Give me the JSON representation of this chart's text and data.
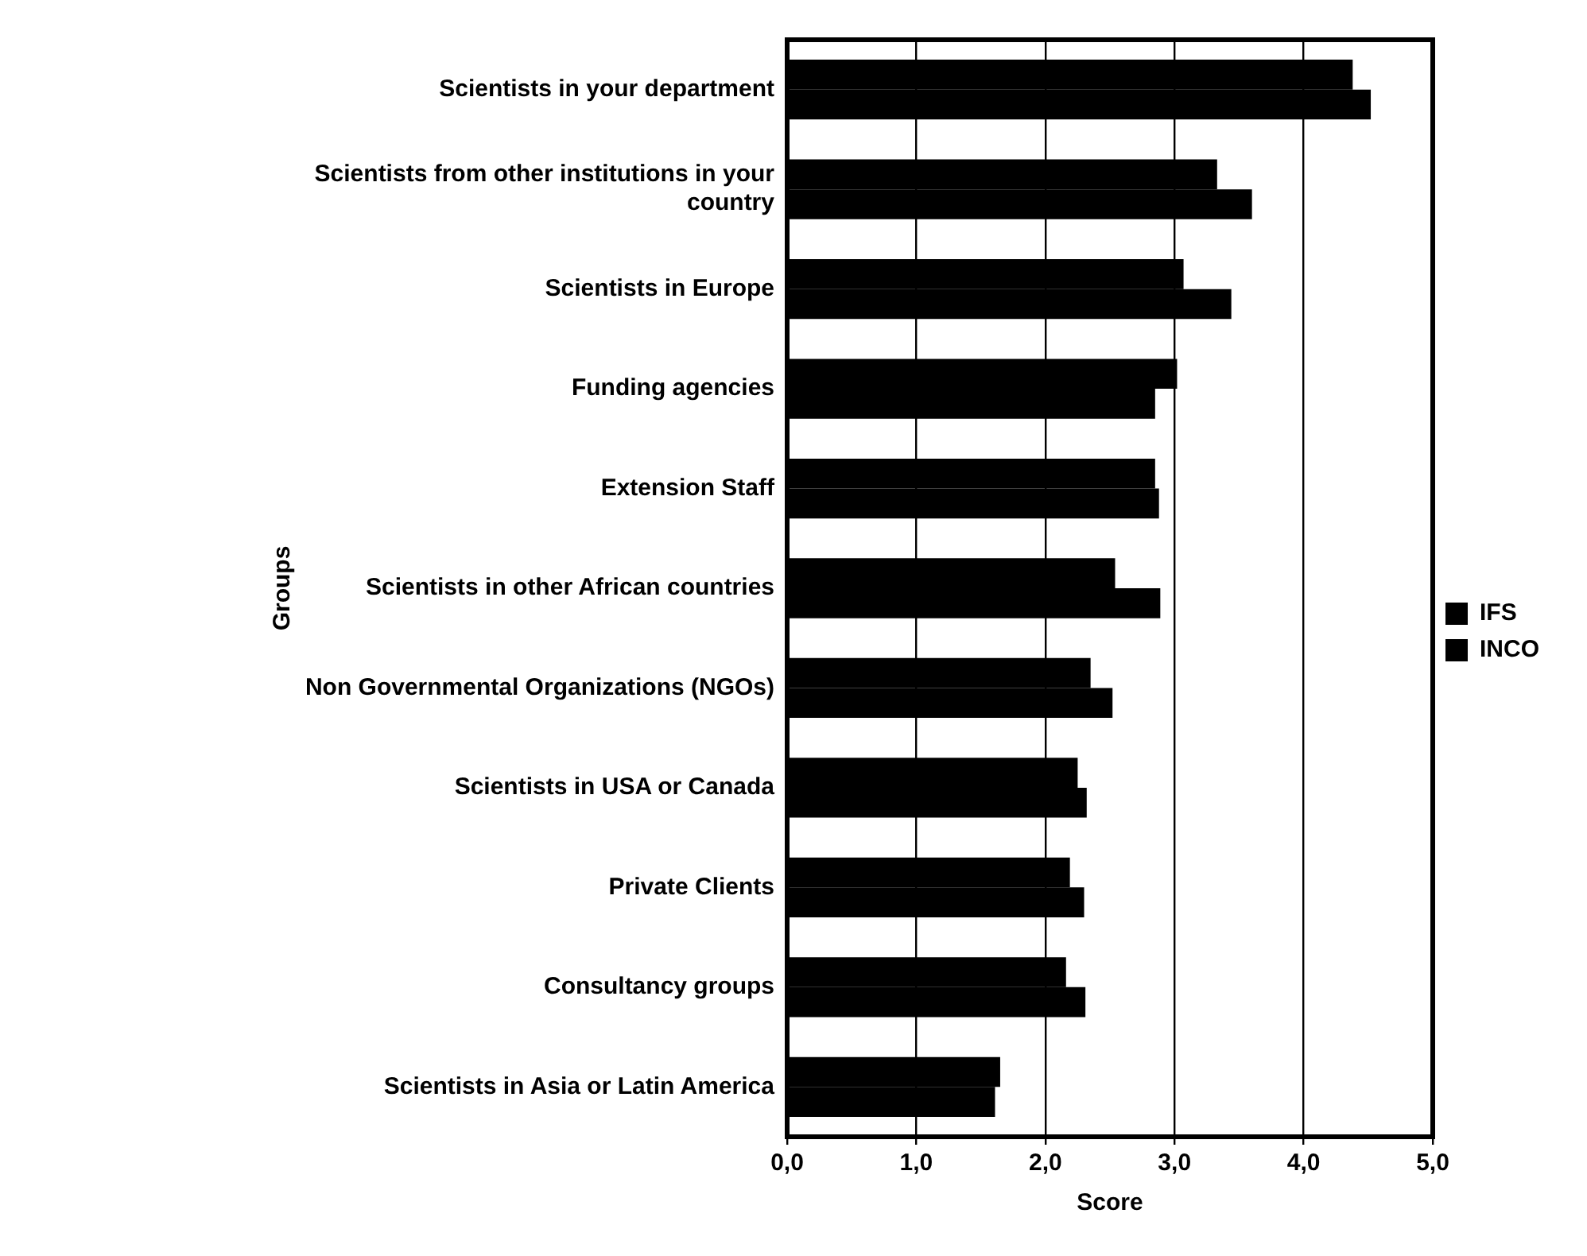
{
  "chart_data": {
    "type": "bar",
    "orientation": "horizontal",
    "xlabel": "Score",
    "ylabel": "Groups",
    "categories": [
      "Scientists in your department",
      "Scientists from other institutions in your country",
      "Scientists in Europe",
      "Funding agencies",
      "Extension Staff",
      "Scientists in other African countries",
      "Non Governmental Organizations (NGOs)",
      "Scientists in USA or Canada",
      "Private Clients",
      "Consultancy groups",
      "Scientists in Asia or Latin America"
    ],
    "series": [
      {
        "name": "IFS",
        "color": "#000000",
        "values": [
          4.38,
          3.33,
          3.07,
          3.02,
          2.85,
          2.54,
          2.35,
          2.25,
          2.19,
          2.16,
          1.65
        ]
      },
      {
        "name": "INCO",
        "color": "#000000",
        "values": [
          4.52,
          3.6,
          3.44,
          2.85,
          2.88,
          2.89,
          2.52,
          2.32,
          2.3,
          2.31,
          1.61
        ]
      }
    ],
    "xlim": [
      0,
      5
    ],
    "xticks": [
      {
        "value": 0,
        "label": "0,0"
      },
      {
        "value": 1,
        "label": "1,0"
      },
      {
        "value": 2,
        "label": "2,0"
      },
      {
        "value": 3,
        "label": "3,0"
      },
      {
        "value": 4,
        "label": "4,0"
      },
      {
        "value": 5,
        "label": "5,0"
      }
    ],
    "grid": "x",
    "legend": "right"
  }
}
